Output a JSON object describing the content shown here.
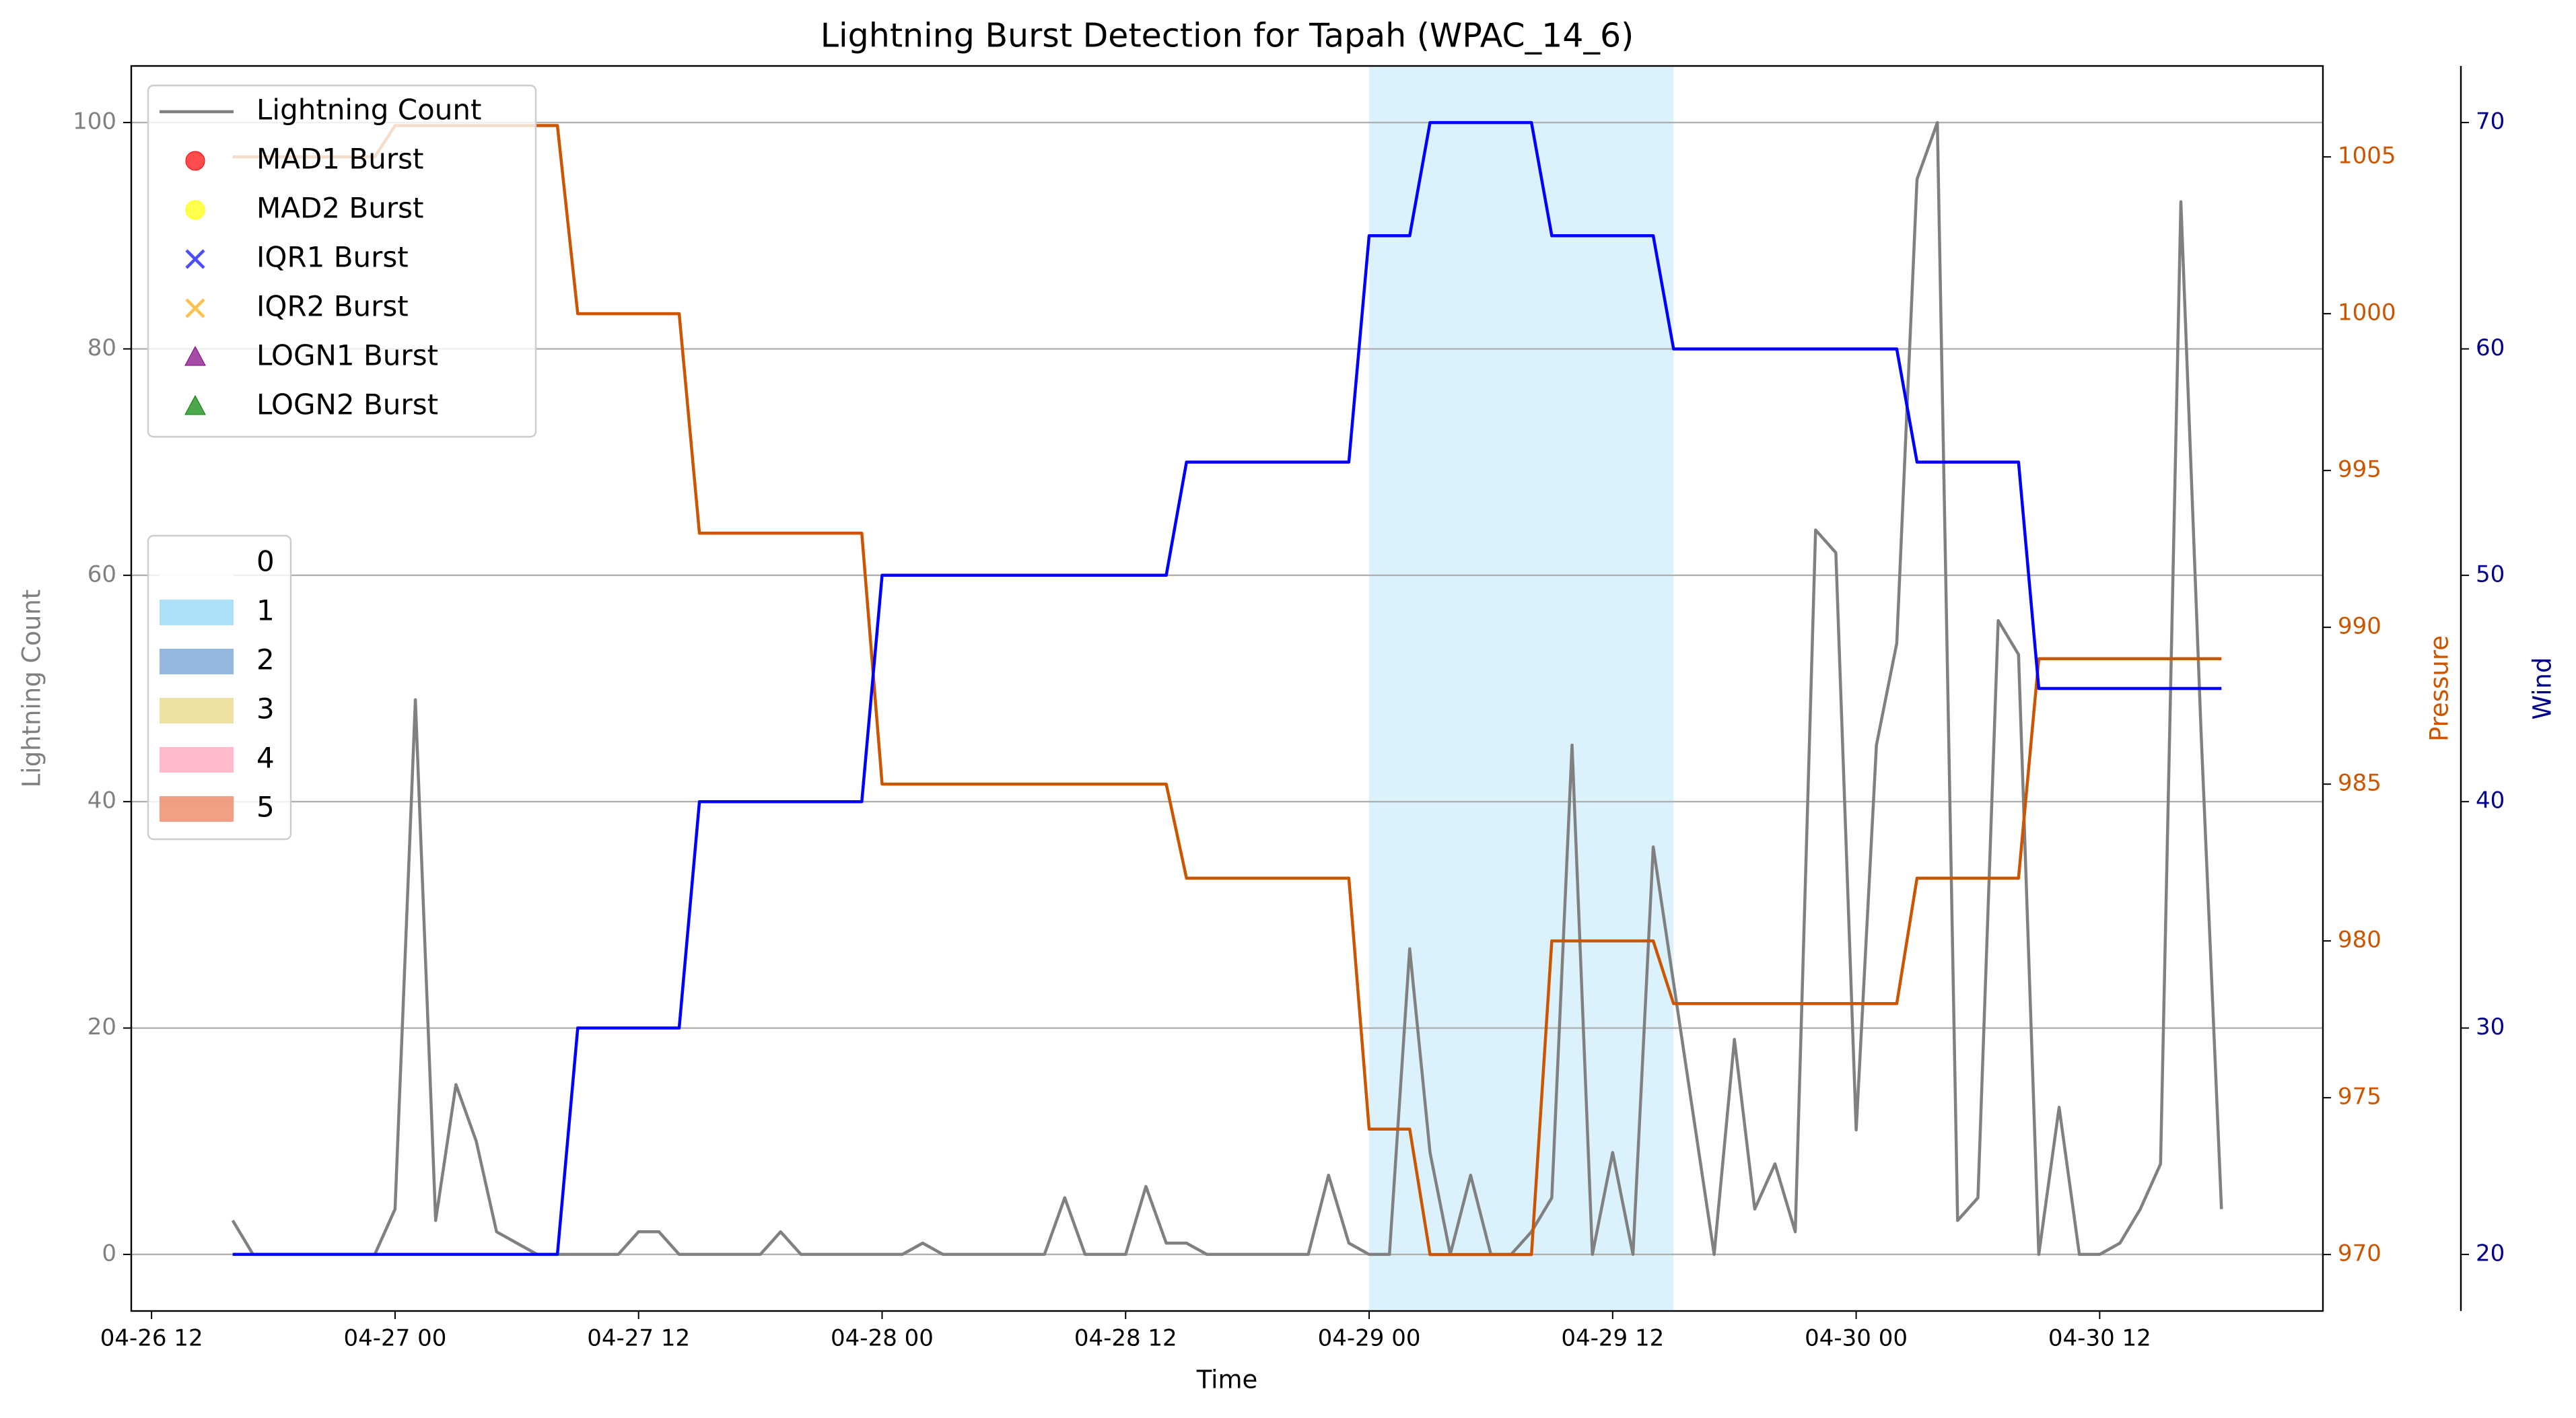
{
  "chart_data": {
    "type": "line",
    "title": "Lightning Burst Detection for Tapah (WPAC_14_6)",
    "x_label": "Time",
    "y_label": "Lightning Count",
    "y2_label": "Pressure",
    "y3_label": "Wind",
    "x": [
      "04-26 16",
      "04-26 17",
      "04-26 18",
      "04-26 19",
      "04-26 20",
      "04-26 21",
      "04-26 22",
      "04-26 23",
      "04-27 00",
      "04-27 01",
      "04-27 02",
      "04-27 03",
      "04-27 04",
      "04-27 05",
      "04-27 06",
      "04-27 07",
      "04-27 08",
      "04-27 09",
      "04-27 10",
      "04-27 11",
      "04-27 12",
      "04-27 13",
      "04-27 14",
      "04-27 15",
      "04-27 16",
      "04-27 17",
      "04-27 18",
      "04-27 19",
      "04-27 20",
      "04-27 21",
      "04-27 22",
      "04-27 23",
      "04-28 00",
      "04-28 01",
      "04-28 02",
      "04-28 03",
      "04-28 04",
      "04-28 05",
      "04-28 06",
      "04-28 07",
      "04-28 08",
      "04-28 09",
      "04-28 10",
      "04-28 11",
      "04-28 12",
      "04-28 13",
      "04-28 14",
      "04-28 15",
      "04-28 16",
      "04-28 17",
      "04-28 18",
      "04-28 19",
      "04-28 20",
      "04-28 21",
      "04-28 22",
      "04-28 23",
      "04-29 00",
      "04-29 01",
      "04-29 02",
      "04-29 03",
      "04-29 04",
      "04-29 05",
      "04-29 06",
      "04-29 07",
      "04-29 08",
      "04-29 09",
      "04-29 10",
      "04-29 11",
      "04-29 12",
      "04-29 13",
      "04-29 14",
      "04-29 15",
      "04-29 16",
      "04-29 17",
      "04-29 18",
      "04-29 19",
      "04-29 20",
      "04-29 21",
      "04-29 22",
      "04-29 23",
      "04-30 00",
      "04-30 01",
      "04-30 02",
      "04-30 03",
      "04-30 04",
      "04-30 05",
      "04-30 06",
      "04-30 07",
      "04-30 08",
      "04-30 09",
      "04-30 10",
      "04-30 11",
      "04-30 12",
      "04-30 13",
      "04-30 14",
      "04-30 15",
      "04-30 16",
      "04-30 17",
      "04-30 18"
    ],
    "series": [
      {
        "name": "Lightning Count",
        "color": "#808080",
        "axis": "y",
        "values": [
          3,
          0,
          0,
          0,
          0,
          0,
          0,
          0,
          4,
          49,
          3,
          15,
          10,
          2,
          1,
          0,
          0,
          0,
          0,
          0,
          2,
          2,
          0,
          0,
          0,
          0,
          0,
          2,
          0,
          0,
          0,
          0,
          0,
          0,
          1,
          0,
          0,
          0,
          0,
          0,
          0,
          5,
          0,
          0,
          0,
          6,
          1,
          1,
          0,
          0,
          0,
          0,
          0,
          0,
          7,
          1,
          0,
          0,
          27,
          9,
          0,
          7,
          0,
          0,
          2,
          5,
          45,
          0,
          9,
          0,
          36,
          24,
          12,
          0,
          19,
          4,
          8,
          2,
          64,
          62,
          11,
          45,
          54,
          95,
          100,
          3,
          5,
          56,
          53,
          0,
          13,
          0,
          0,
          1,
          4,
          8,
          93,
          46,
          4
        ]
      },
      {
        "name": "Pressure",
        "color": "#cc5500",
        "axis": "y2",
        "values": [
          1005,
          1005,
          1005,
          1005,
          1005,
          1005,
          1005,
          1005,
          1006,
          1006,
          1006,
          1006,
          1006,
          1006,
          1006,
          1006,
          1006,
          1000,
          1000,
          1000,
          1000,
          1000,
          1000,
          993,
          993,
          993,
          993,
          993,
          993,
          993,
          993,
          993,
          985,
          985,
          985,
          985,
          985,
          985,
          985,
          985,
          985,
          985,
          985,
          985,
          985,
          985,
          985,
          982,
          982,
          982,
          982,
          982,
          982,
          982,
          982,
          982,
          974,
          974,
          974,
          970,
          970,
          970,
          970,
          970,
          970,
          980,
          980,
          980,
          980,
          980,
          980,
          978,
          978,
          978,
          978,
          978,
          978,
          978,
          978,
          978,
          978,
          978,
          978,
          982,
          982,
          982,
          982,
          982,
          982,
          989,
          989,
          989,
          989,
          989,
          989,
          989,
          989,
          989,
          989
        ]
      },
      {
        "name": "Wind",
        "color": "#0000ff",
        "axis": "y3",
        "values": [
          20,
          20,
          20,
          20,
          20,
          20,
          20,
          20,
          20,
          20,
          20,
          20,
          20,
          20,
          20,
          20,
          20,
          30,
          30,
          30,
          30,
          30,
          30,
          40,
          40,
          40,
          40,
          40,
          40,
          40,
          40,
          40,
          50,
          50,
          50,
          50,
          50,
          50,
          50,
          50,
          50,
          50,
          50,
          50,
          50,
          50,
          50,
          55,
          55,
          55,
          55,
          55,
          55,
          55,
          55,
          55,
          65,
          65,
          65,
          70,
          70,
          70,
          70,
          70,
          70,
          65,
          65,
          65,
          65,
          65,
          65,
          60,
          60,
          60,
          60,
          60,
          60,
          60,
          60,
          60,
          60,
          60,
          60,
          55,
          55,
          55,
          55,
          55,
          55,
          45,
          45,
          45,
          45,
          45,
          45,
          45,
          45,
          45,
          45
        ]
      }
    ],
    "burst_markers": [
      {
        "name": "MAD1 Burst",
        "color": "#ff0000",
        "marker": "o"
      },
      {
        "name": "MAD2 Burst",
        "color": "#ffff00",
        "marker": "o"
      },
      {
        "name": "IQR1 Burst",
        "color": "#0000ff",
        "marker": "x"
      },
      {
        "name": "IQR2 Burst",
        "color": "#ffa500",
        "marker": "x"
      },
      {
        "name": "LOGN1 Burst",
        "color": "#800080",
        "marker": "^"
      },
      {
        "name": "LOGN2 Burst",
        "color": "#008000",
        "marker": "^"
      }
    ],
    "intensity_legend": [
      {
        "label": "0",
        "color": "#ffffff"
      },
      {
        "label": "1",
        "color": "#99d9f7"
      },
      {
        "label": "2",
        "color": "#7aa6d8"
      },
      {
        "label": "3",
        "color": "#e8d98a"
      },
      {
        "label": "4",
        "color": "#ffaabb"
      },
      {
        "label": "5",
        "color": "#ee8866"
      }
    ],
    "spans": [
      {
        "start": "04-29 00",
        "end": "04-29 15",
        "category": 1
      }
    ],
    "xlim": [
      "04-26 11",
      "04-30 23"
    ],
    "xticks": [
      "04-26 12",
      "04-27 00",
      "04-27 12",
      "04-28 00",
      "04-28 12",
      "04-29 00",
      "04-29 12",
      "04-30 00",
      "04-30 12"
    ],
    "ylim": [
      -5,
      105
    ],
    "yticks": [
      0,
      20,
      40,
      60,
      80,
      100
    ],
    "y2lim": [
      968.2,
      1007.9
    ],
    "y2ticks": [
      970,
      975,
      980,
      985,
      990,
      995,
      1000,
      1005
    ],
    "y3lim": [
      17.5,
      72.5
    ],
    "y3ticks": [
      20,
      30,
      40,
      50,
      60,
      70
    ],
    "grid": true
  }
}
